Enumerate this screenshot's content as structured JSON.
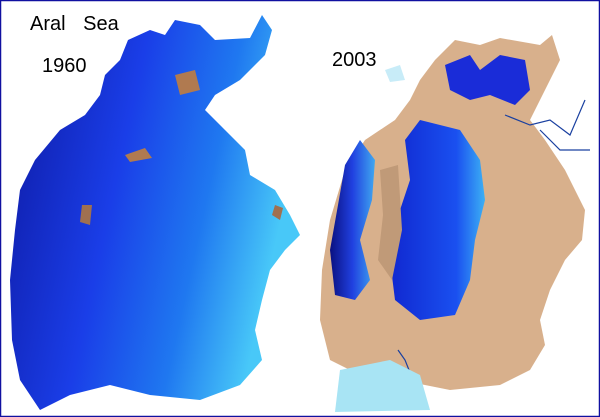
{
  "title": "Aral Sea",
  "panels": [
    {
      "label": "1960"
    },
    {
      "label": "2003"
    }
  ]
}
